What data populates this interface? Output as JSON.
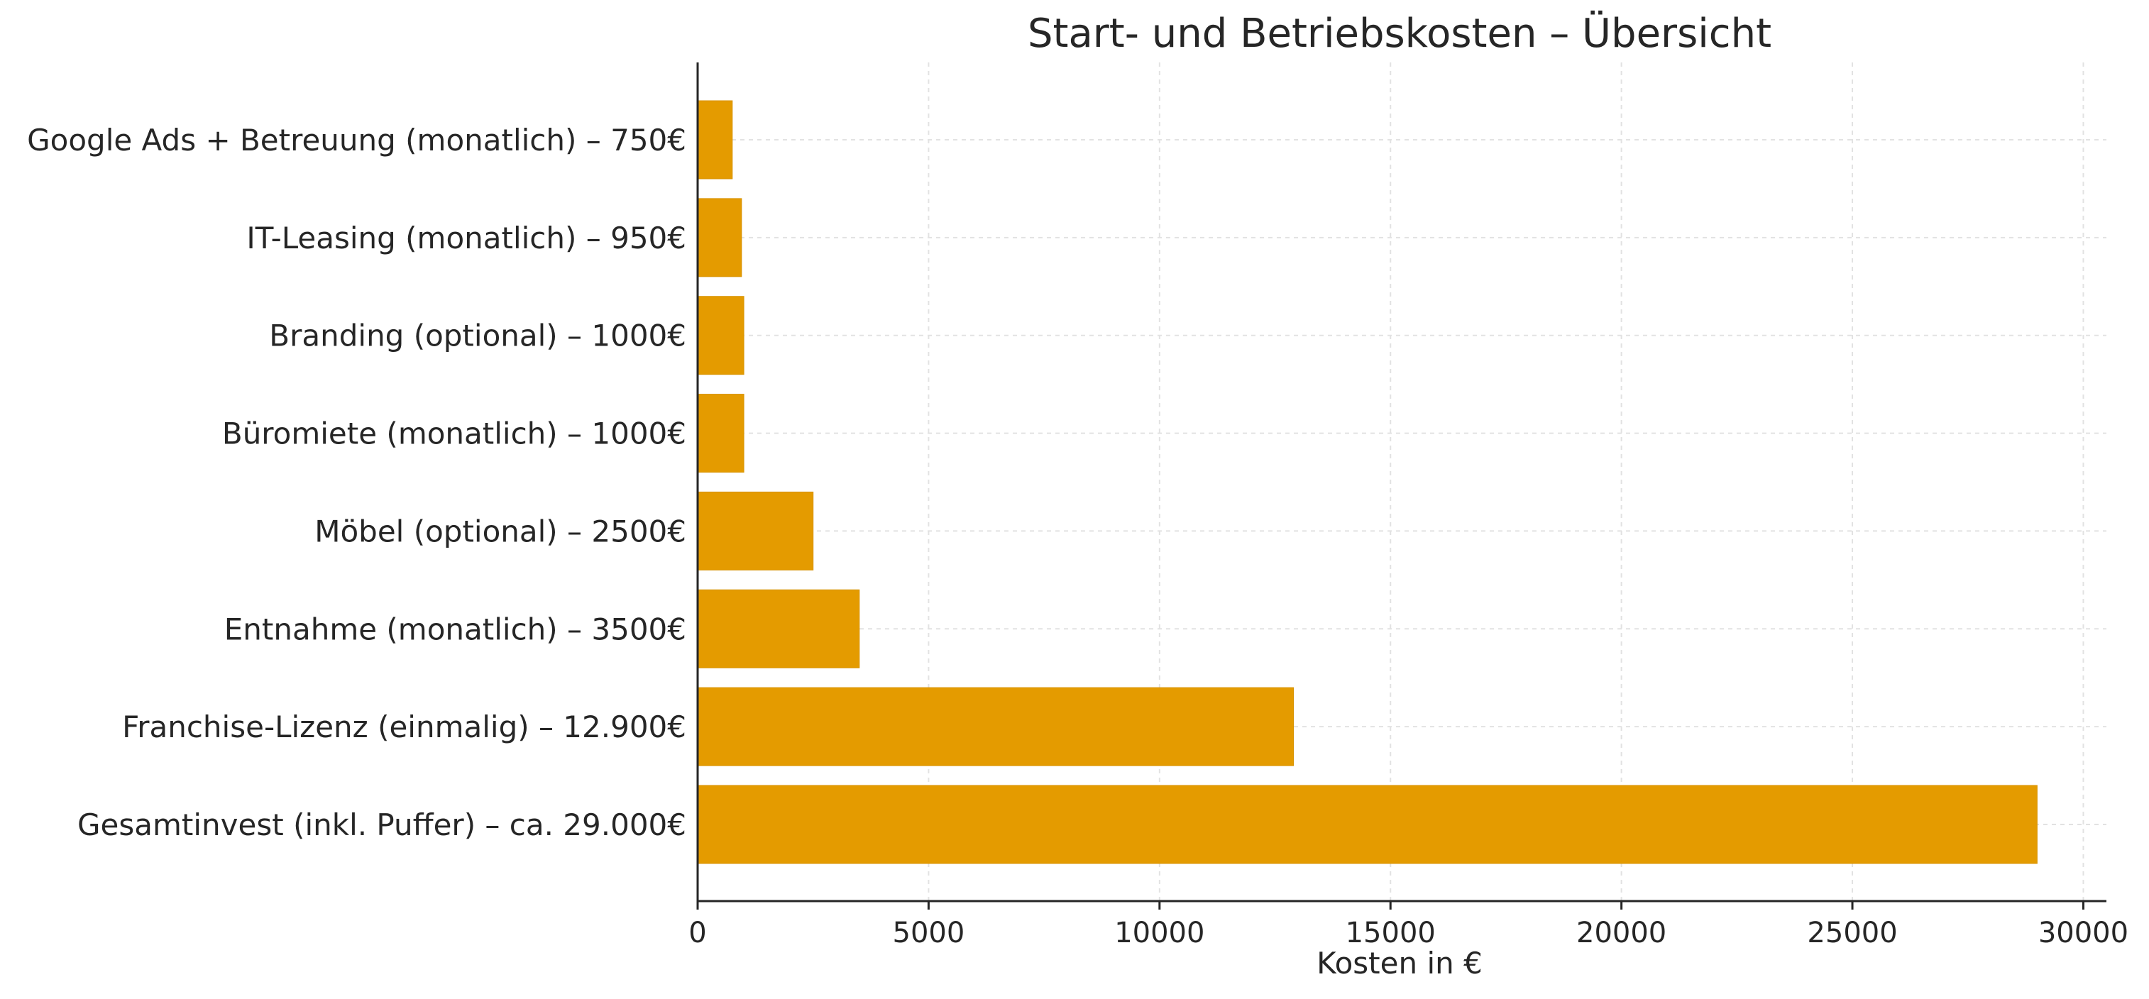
{
  "chart_data": {
    "type": "bar",
    "orientation": "horizontal",
    "title": "Start- und Betriebskosten – Übersicht",
    "xlabel": "Kosten in €",
    "ylabel": "",
    "categories": [
      "Google Ads + Betreuung (monatlich) – 750€",
      "IT-Leasing (monatlich) – 950€",
      "Branding (optional) – 1000€",
      "Büromiete (monatlich) – 1000€",
      "Möbel (optional) – 2500€",
      "Entnahme (monatlich) – 3500€",
      "Franchise-Lizenz (einmalig) – 12.900€",
      "Gesamtinvest (inkl. Puffer) – ca. 29.000€"
    ],
    "values": [
      750,
      950,
      1000,
      1000,
      2500,
      3500,
      12900,
      29000
    ],
    "xlim": [
      0,
      30500
    ],
    "xticks": [
      0,
      5000,
      10000,
      15000,
      20000,
      25000,
      30000
    ],
    "xtick_labels": [
      "0",
      "5000",
      "10000",
      "15000",
      "20000",
      "25000",
      "30000"
    ],
    "grid": true,
    "bar_color": "#e49b00"
  }
}
